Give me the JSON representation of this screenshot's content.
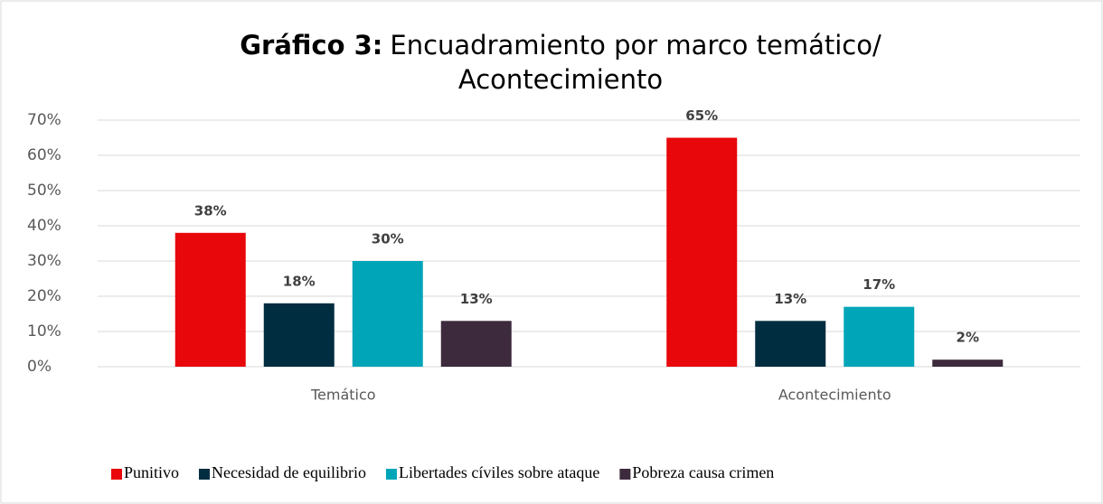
{
  "chart_data": {
    "type": "bar",
    "title_bold": "Gráfico 3:",
    "title": [
      "Encuadramiento por marco temático/",
      "Acontecimiento"
    ],
    "categories": [
      "Temático",
      "Acontecimiento"
    ],
    "series": [
      {
        "name": "Punitivo",
        "color": "#e8070a",
        "values": [
          38,
          65
        ],
        "value_labels": [
          "38%",
          "65%"
        ]
      },
      {
        "name": "Necesidad de equilibrio",
        "color": "#002d40",
        "values": [
          18,
          13
        ],
        "value_labels": [
          "18%",
          "13%"
        ]
      },
      {
        "name": "Libertades cíviles sobre ataque",
        "color": "#00a6b8",
        "values": [
          30,
          17
        ],
        "value_labels": [
          "30%",
          "17%"
        ]
      },
      {
        "name": "Pobreza causa crimen",
        "color": "#3d2b3d",
        "values": [
          13,
          2
        ],
        "value_labels": [
          "13%",
          "2%"
        ]
      }
    ],
    "ylim": [
      0,
      70
    ],
    "yticks": [
      {
        "value": 0,
        "label": "0%"
      },
      {
        "value": 10,
        "label": "10%"
      },
      {
        "value": 20,
        "label": "20%"
      },
      {
        "value": 30,
        "label": "30%"
      },
      {
        "value": 40,
        "label": "40%"
      },
      {
        "value": 50,
        "label": "50%"
      },
      {
        "value": 60,
        "label": "60%"
      },
      {
        "value": 70,
        "label": "70%"
      }
    ],
    "grid": true,
    "legend": "bottom"
  }
}
